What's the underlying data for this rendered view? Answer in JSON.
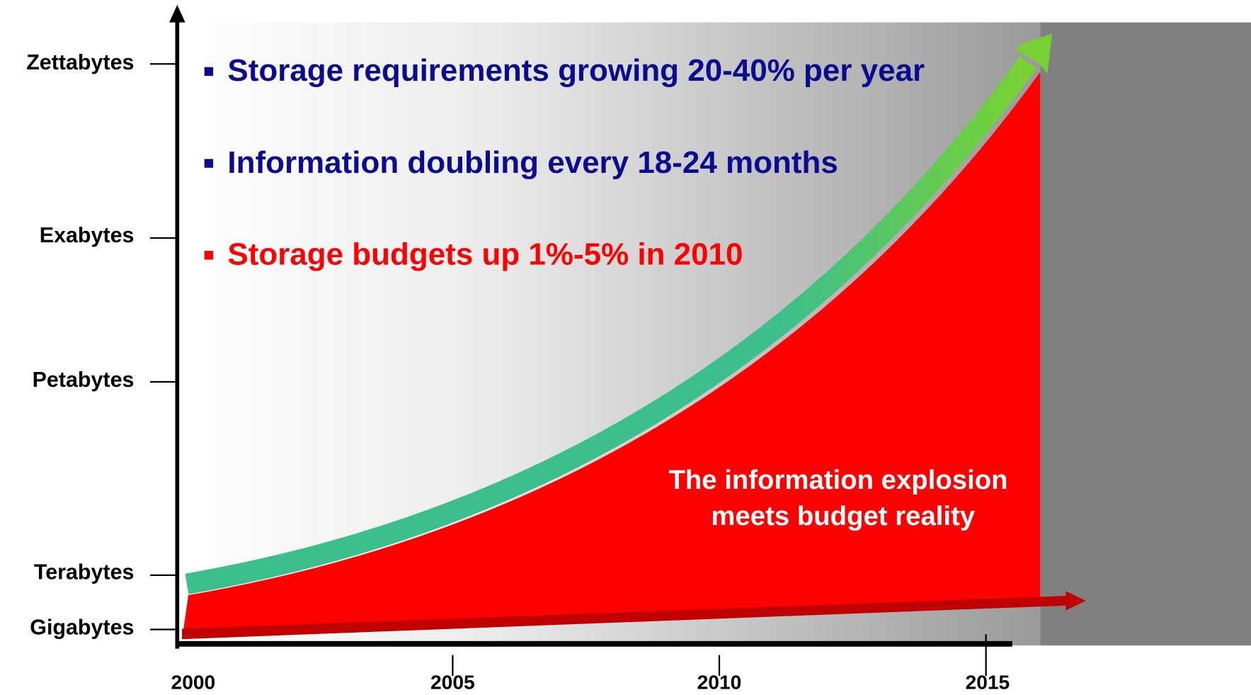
{
  "y_axis_labels": [
    "Zettabytes",
    "Exabytes",
    "Petabytes",
    "Terabytes",
    "Gigabytes"
  ],
  "x_axis_labels": [
    "2000",
    "2005",
    "2010",
    "2015"
  ],
  "bullets": [
    "Storage requirements growing 20-40% per year",
    "Information doubling every 18-24 months",
    "Storage budgets up 1%-5% in 2010"
  ],
  "note": [
    "The information explosion",
    "meets budget reality"
  ]
}
